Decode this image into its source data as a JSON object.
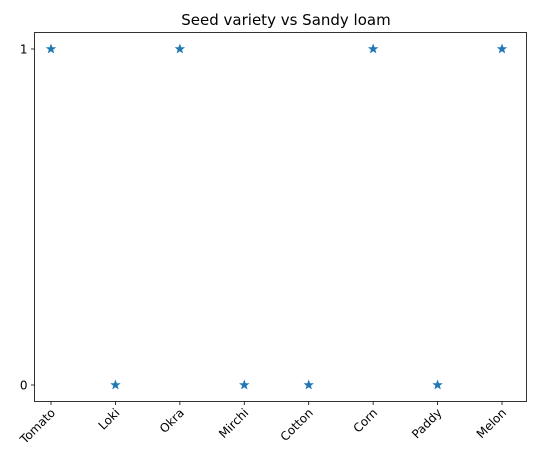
{
  "chart_data": {
    "type": "scatter",
    "title": "Seed variety vs Sandy loam",
    "xlabel": "",
    "ylabel": "",
    "categories": [
      "Tomato",
      "Loki",
      "Okra",
      "Mirchi",
      "Cotton",
      "Corn",
      "Paddy",
      "Melon"
    ],
    "values": [
      1,
      0,
      1,
      0,
      0,
      1,
      0,
      1
    ],
    "yticks": [
      "0",
      "1"
    ],
    "ylim": [
      0,
      1
    ],
    "marker": "star",
    "color": "#1f77b4",
    "grid": false,
    "legend": "none",
    "xtick_rotation": 45
  }
}
